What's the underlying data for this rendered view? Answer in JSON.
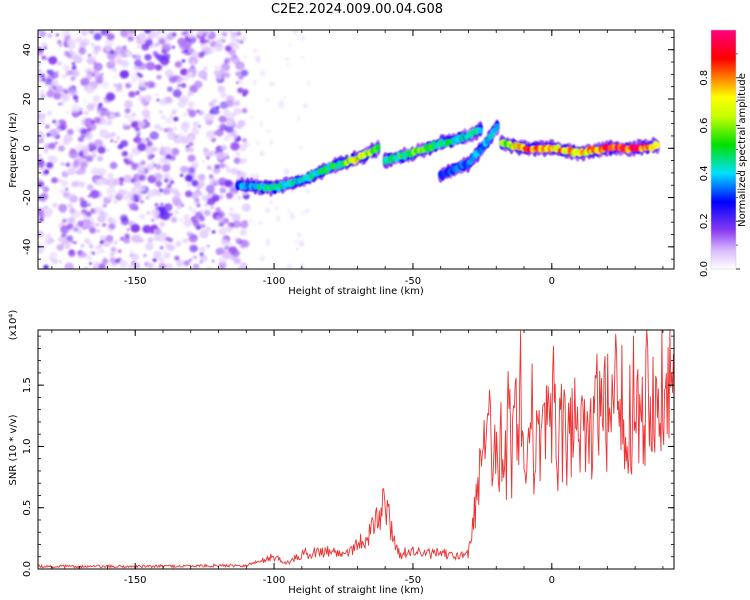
{
  "title": "C2E2.2024.009.00.04.G08",
  "colors": {
    "snr_line": "#ee3333",
    "background": "#ffffff",
    "axis": "#000000"
  },
  "chart_data": [
    {
      "type": "heatmap",
      "xlabel": "Height of straight line (km)",
      "ylabel": "Frequency (Hz)",
      "xlim": [
        -185,
        44
      ],
      "ylim": [
        -49,
        48
      ],
      "xticks": [
        -150,
        -100,
        -50,
        0
      ],
      "yticks": [
        -40,
        -20,
        0,
        20,
        40
      ],
      "colorbar": {
        "label": "Normalized spectral amplitude",
        "range": [
          0.0,
          1.0
        ],
        "ticks": [
          0.0,
          0.2,
          0.4,
          0.6,
          0.8
        ],
        "colormap": [
          "#ffffff",
          "#8a3cf0",
          "#0000ff",
          "#00e0ff",
          "#00e000",
          "#ffff00",
          "#ff7f00",
          "#ff0000",
          "#ff0080"
        ]
      },
      "noise_region_x": [
        -185,
        -112
      ],
      "traces": [
        {
          "x": [
            -113,
            -100,
            -90,
            -80,
            -70,
            -62
          ],
          "freq": [
            -15,
            -16,
            -13,
            -8,
            -4,
            0
          ],
          "amp": [
            0.35,
            0.5,
            0.45,
            0.5,
            0.7,
            0.55
          ]
        },
        {
          "x": [
            -60,
            -50,
            -40,
            -30,
            -25
          ],
          "freq": [
            -5,
            -2,
            2,
            5,
            8
          ],
          "amp": [
            0.45,
            0.6,
            0.5,
            0.45,
            0.5
          ]
        },
        {
          "x": [
            -40,
            -30,
            -25,
            -19
          ],
          "freq": [
            -11,
            -6,
            0,
            10
          ],
          "amp": [
            0.3,
            0.35,
            0.4,
            0.45
          ]
        },
        {
          "x": [
            -18,
            -10,
            0,
            10,
            20,
            30,
            38
          ],
          "freq": [
            2,
            0,
            0,
            -2,
            0,
            0,
            1
          ],
          "amp": [
            0.6,
            0.85,
            0.9,
            0.7,
            0.95,
            0.95,
            0.7
          ]
        }
      ]
    },
    {
      "type": "line",
      "xlabel": "Height of straight line (km)",
      "ylabel": "SNR (10 * v/v)",
      "y_multiplier": "(x10⁴)",
      "xlim": [
        -185,
        44
      ],
      "ylim": [
        0.0,
        1.95
      ],
      "xticks": [
        -150,
        -100,
        -50,
        0
      ],
      "yticks": [
        0.0,
        0.5,
        1.0,
        1.5
      ],
      "series": [
        {
          "x": [
            -185,
            -150,
            -110,
            -100,
            -95,
            -90,
            -80,
            -75,
            -70,
            -65,
            -60,
            -58,
            -55,
            -50,
            -45,
            -40,
            -35,
            -30,
            -27,
            -25,
            -22,
            -20,
            -18,
            -15,
            -12,
            -10,
            -5,
            0,
            5,
            10,
            15,
            20,
            25,
            30,
            35,
            40,
            44
          ],
          "y": [
            0.02,
            0.02,
            0.03,
            0.1,
            0.05,
            0.12,
            0.15,
            0.12,
            0.2,
            0.3,
            0.55,
            0.35,
            0.12,
            0.15,
            0.12,
            0.13,
            0.1,
            0.12,
            0.6,
            0.9,
            1.1,
            0.85,
            1.05,
            0.85,
            1.3,
            0.8,
            1.0,
            1.1,
            1.05,
            1.25,
            1.15,
            1.25,
            1.35,
            1.3,
            1.5,
            1.6,
            1.45
          ]
        }
      ]
    }
  ]
}
